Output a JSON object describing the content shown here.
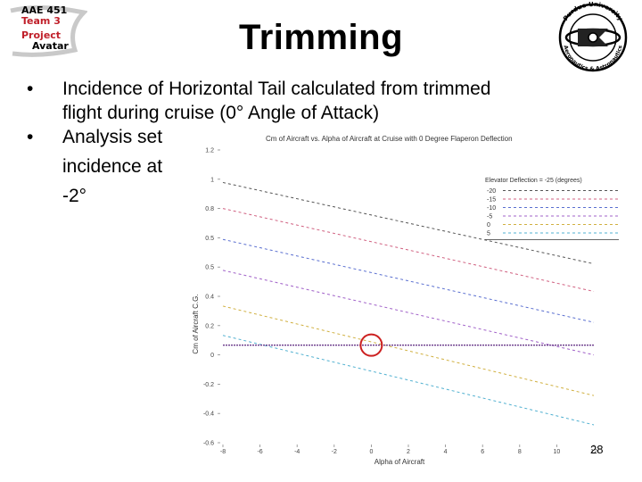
{
  "logo": {
    "line1": "AAE 451",
    "line2": "Team 3",
    "line3": "Project",
    "line4": "Avatar",
    "line2_color": "#c0202a",
    "line3_color": "#c0202a"
  },
  "seal": {
    "top_text": "Purdue University",
    "bottom_text": "Aeronautics & Astronautics",
    "icon": "university-seal-icon"
  },
  "title": "Trimming",
  "bullets": [
    {
      "marker": "•",
      "lines": [
        "Incidence of Horizontal Tail calculated from trimmed",
        "flight during cruise (0° Angle of Attack)"
      ]
    },
    {
      "marker": "•",
      "lines": [
        "Analysis set",
        "incidence at",
        "-2°"
      ]
    }
  ],
  "chart_data": {
    "type": "line",
    "title": "Cm of Aircraft vs. Alpha of Aircraft at Cruise with 0 Degree Flaperon Deflection",
    "xlabel": "Alpha of Aircraft",
    "ylabel": "Cm of Aircraft C.G.",
    "xlim": [
      -8,
      12
    ],
    "ylim": [
      -0.6,
      1.2
    ],
    "x_ticks": [
      "-8",
      "-6",
      "-4",
      "-2",
      "0",
      "2",
      "4",
      "6",
      "8",
      "10",
      "12"
    ],
    "y_ticks": [
      "-0.6",
      "-0.4",
      "-0.2",
      "0",
      "0.2",
      "0.4",
      "0.5",
      "0.5",
      "0.8",
      "1",
      "1.2"
    ],
    "grid": false,
    "legend_title": "Elevator Deflection = -25 (degrees)",
    "legend_placement": "top-right",
    "series": [
      {
        "name": "-20",
        "color": "#555555",
        "dash": "3,3",
        "points": [
          [
            -8,
            1.0
          ],
          [
            12,
            0.5
          ]
        ]
      },
      {
        "name": "-15",
        "color": "#d06080",
        "dash": "3,3",
        "points": [
          [
            -8,
            0.84
          ],
          [
            12,
            0.33
          ]
        ]
      },
      {
        "name": "-10",
        "color": "#5a6fd0",
        "dash": "3,3",
        "points": [
          [
            -8,
            0.65
          ],
          [
            12,
            0.14
          ]
        ]
      },
      {
        "name": "-5",
        "color": "#a060c8",
        "dash": "3,3",
        "points": [
          [
            -8,
            0.46
          ],
          [
            12,
            -0.06
          ]
        ]
      },
      {
        "name": "0",
        "color": "#d0b040",
        "dash": "3,3",
        "points": [
          [
            -8,
            0.24
          ],
          [
            12,
            -0.31
          ]
        ]
      },
      {
        "name": "5",
        "color": "#50b0d0",
        "dash": "3,3",
        "points": [
          [
            -8,
            0.06
          ],
          [
            12,
            -0.49
          ]
        ]
      }
    ],
    "reference_line": {
      "y": 0,
      "color": "#6a3a8a"
    },
    "highlight": {
      "x": 0,
      "y": 0,
      "color": "#cc2020"
    }
  },
  "page_number": "28"
}
